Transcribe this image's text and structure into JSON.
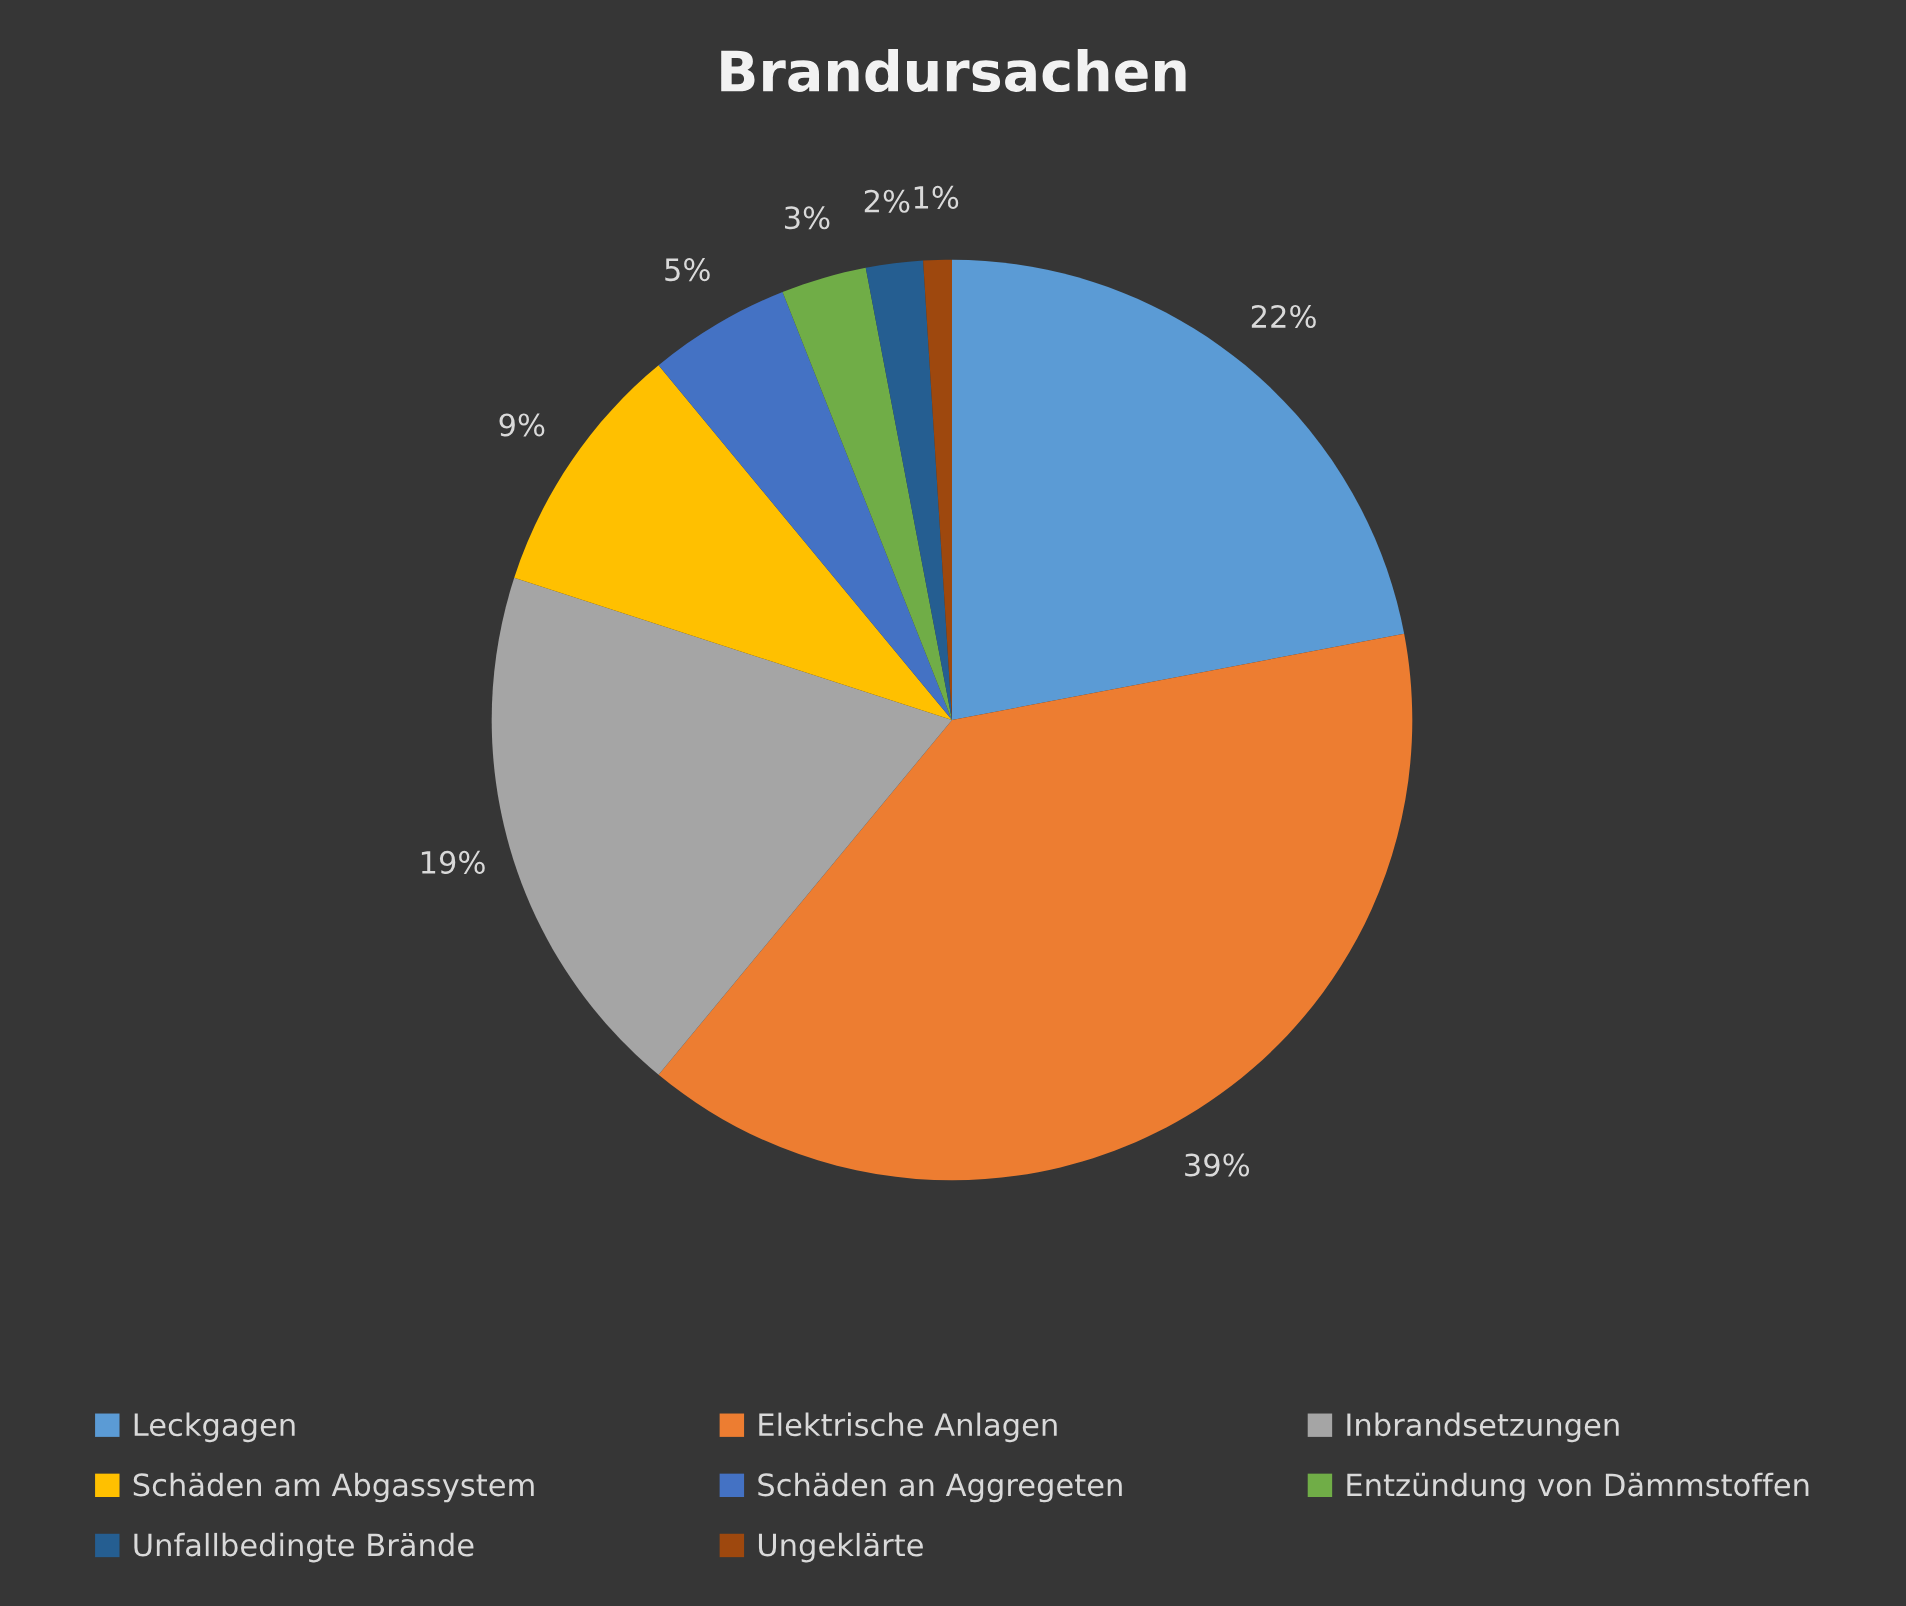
{
  "chart_data": {
    "type": "pie",
    "title": "Brandursachen",
    "categories": [
      "Leckgagen",
      "Elektrische Anlagen",
      "Inbrandsetzungen",
      "Schäden am Abgassystem",
      "Schäden an Aggregeten",
      "Entzündung von Dämmstoffen",
      "Unfallbedingte Brände",
      "Ungeklärte"
    ],
    "values": [
      22,
      39,
      19,
      9,
      5,
      3,
      2,
      1
    ],
    "colors": [
      "#5b9bd5",
      "#ed7d31",
      "#a5a5a5",
      "#ffc000",
      "#4472c4",
      "#70ad47",
      "#255e91",
      "#9e480e"
    ],
    "value_labels": [
      "22%",
      "39%",
      "19%",
      "9%",
      "5%",
      "3%",
      "2%",
      "1%"
    ],
    "legend": "bottom"
  }
}
